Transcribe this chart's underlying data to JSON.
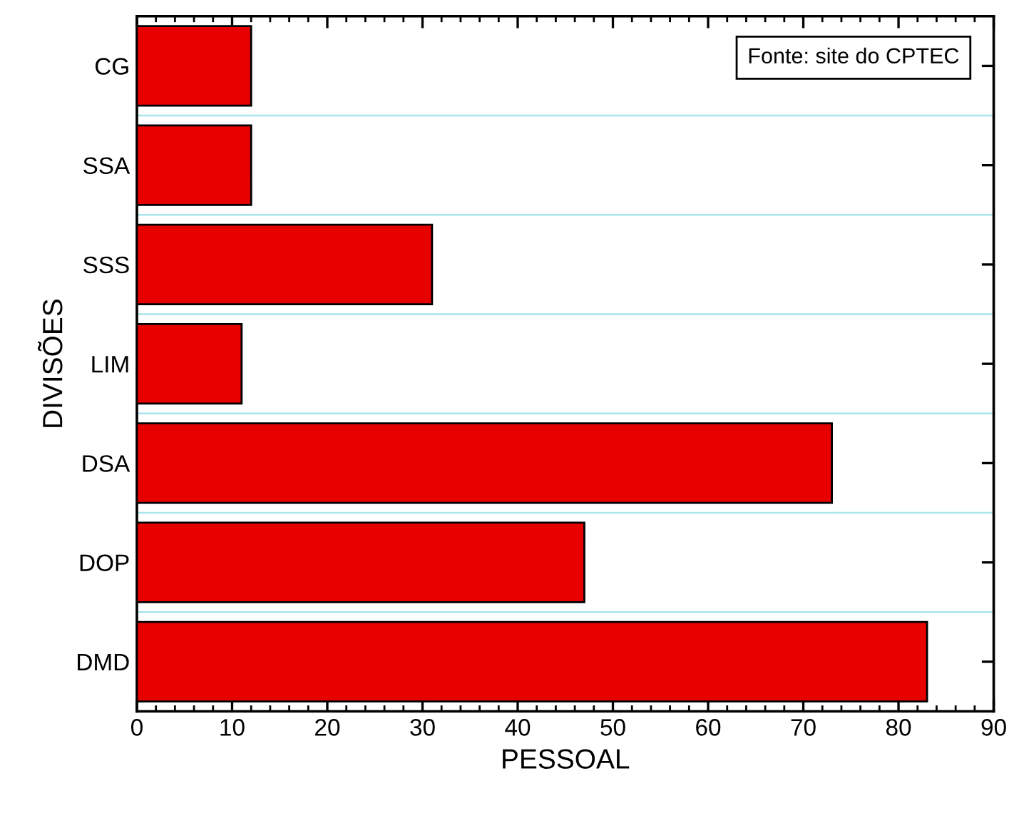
{
  "chart_data": {
    "type": "bar",
    "orientation": "horizontal",
    "categories": [
      "CG",
      "SSA",
      "SSS",
      "LIM",
      "DSA",
      "DOP",
      "DMD"
    ],
    "values": [
      12,
      12,
      31,
      11,
      73,
      47,
      83
    ],
    "color": "#e60000",
    "xlabel": "PESSOAL",
    "ylabel": "DIVISÕES",
    "xlim": [
      0,
      90
    ],
    "xticks": [
      0,
      10,
      20,
      30,
      40,
      50,
      60,
      70,
      80,
      90
    ],
    "grid": "y",
    "annotations": [
      "Fonte: site do CPTEC"
    ]
  }
}
